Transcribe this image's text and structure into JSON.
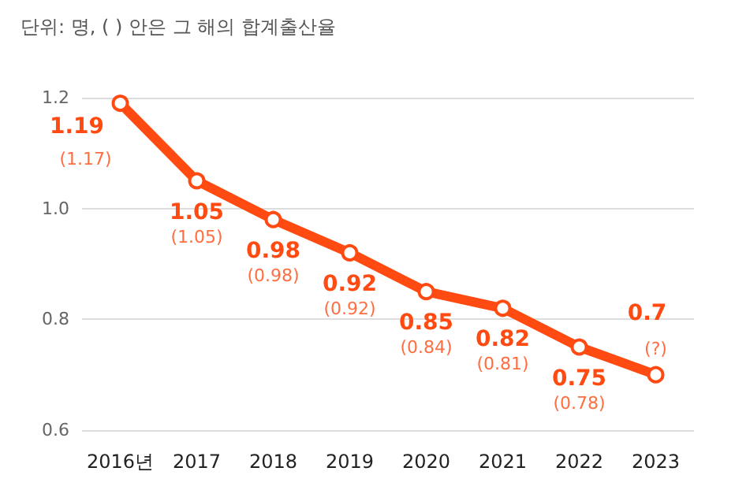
{
  "chart_data": {
    "type": "line",
    "title": "단위: 명, ( ) 안은 그 해의 합계출산율",
    "categories": [
      "2016년",
      "2017",
      "2018",
      "2019",
      "2020",
      "2021",
      "2022",
      "2023"
    ],
    "series": [
      {
        "color": "#ff4a12",
        "values": [
          1.19,
          1.05,
          0.98,
          0.92,
          0.85,
          0.82,
          0.75,
          0.7
        ],
        "value_labels": [
          "1.19",
          "1.05",
          "0.98",
          "0.92",
          "0.85",
          "0.82",
          "0.75",
          "0.7"
        ]
      }
    ],
    "annotations": [
      {
        "text": "(1.17)",
        "x": "2016년",
        "y": 1.19
      },
      {
        "text": "(1.05)",
        "x": "2017",
        "y": 1.05
      },
      {
        "text": "(0.98)",
        "x": "2018",
        "y": 0.98
      },
      {
        "text": "(0.92)",
        "x": "2019",
        "y": 0.92
      },
      {
        "text": "(0.84)",
        "x": "2020",
        "y": 0.85
      },
      {
        "text": "(0.81)",
        "x": "2021",
        "y": 0.82
      },
      {
        "text": "(0.78)",
        "x": "2022",
        "y": 0.75
      },
      {
        "text": "(?)",
        "x": "2023",
        "y": 0.7
      }
    ],
    "ylim": [
      0.6,
      1.2
    ],
    "yticks": [
      {
        "value": 0.6,
        "label": "0.6"
      },
      {
        "value": 0.8,
        "label": "0.8"
      },
      {
        "value": 1.0,
        "label": "1.0"
      },
      {
        "value": 1.2,
        "label": "1.2"
      }
    ],
    "grid": "y",
    "marker": "circle",
    "line_style": "solid"
  }
}
